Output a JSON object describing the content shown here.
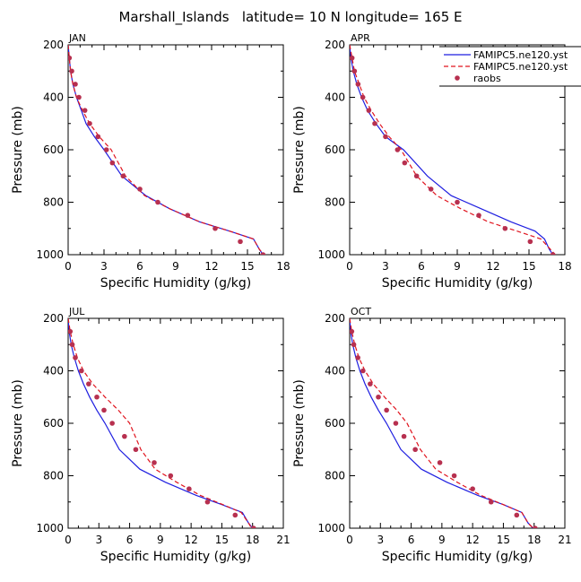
{
  "title": "Marshall_Islands   latitude= 10 N longitude= 165 E",
  "legend": [
    {
      "label": "FAMIPC5.ne120.yst",
      "style": "solid",
      "color": "#1f1fe0"
    },
    {
      "label": "FAMIPC5.ne120.yst",
      "style": "dashed",
      "color": "#e0141e"
    },
    {
      "label": "raobs",
      "style": "dot",
      "color": "#b7304f"
    }
  ],
  "chart_data": [
    {
      "type": "line",
      "title": "JAN",
      "xlabel": "Specific Humidity (g/kg)",
      "ylabel": "Pressure (mb)",
      "xlim": [
        0,
        18
      ],
      "ylim": [
        1000,
        200
      ],
      "xticks": [
        0,
        3,
        6,
        9,
        12,
        15,
        18
      ],
      "yticks": [
        200,
        400,
        600,
        800,
        1000
      ],
      "series": [
        {
          "name": "FAMIPC5.ne120.yst (solid)",
          "x": [
            0.0,
            0.1,
            0.2,
            0.4,
            0.7,
            1.1,
            1.5,
            2.2,
            3.0,
            4.5,
            6.5,
            8.5,
            11.0,
            13.5,
            15.5,
            16.0,
            16.3
          ],
          "y": [
            200,
            250,
            300,
            350,
            400,
            450,
            500,
            550,
            600,
            700,
            775,
            825,
            875,
            910,
            940,
            980,
            1000
          ]
        },
        {
          "name": "FAMIPC5.ne120.yst (dashed)",
          "x": [
            0.0,
            0.1,
            0.2,
            0.4,
            0.7,
            1.2,
            1.8,
            2.6,
            3.6,
            4.8,
            6.4,
            8.5,
            11.0,
            13.5,
            15.5,
            16.0,
            16.4
          ],
          "y": [
            200,
            250,
            300,
            350,
            400,
            450,
            500,
            550,
            600,
            700,
            775,
            825,
            875,
            910,
            940,
            980,
            1000
          ]
        },
        {
          "name": "raobs",
          "x": [
            0.1,
            0.3,
            0.6,
            0.9,
            1.4,
            1.8,
            2.5,
            3.2,
            3.7,
            4.6,
            6.0,
            7.5,
            10.0,
            12.3,
            14.4,
            16.3
          ],
          "y": [
            250,
            300,
            350,
            400,
            450,
            500,
            550,
            600,
            650,
            700,
            750,
            800,
            850,
            900,
            950,
            1000
          ]
        }
      ]
    },
    {
      "type": "line",
      "title": "APR",
      "xlabel": "Specific Humidity (g/kg)",
      "ylabel": "Pressure (mb)",
      "xlim": [
        0,
        18
      ],
      "ylim": [
        1000,
        200
      ],
      "xticks": [
        0,
        3,
        6,
        9,
        12,
        15,
        18
      ],
      "yticks": [
        200,
        400,
        600,
        800,
        1000
      ],
      "series": [
        {
          "name": "FAMIPC5.ne120.yst (solid)",
          "x": [
            0.0,
            0.1,
            0.3,
            0.6,
            1.0,
            1.5,
            2.2,
            3.0,
            4.5,
            6.5,
            8.5,
            11.0,
            13.5,
            15.5,
            16.3,
            16.7,
            17.0
          ],
          "y": [
            200,
            250,
            300,
            350,
            400,
            450,
            500,
            550,
            600,
            700,
            775,
            825,
            875,
            910,
            940,
            980,
            1000
          ]
        },
        {
          "name": "FAMIPC5.ne120.yst (dashed)",
          "x": [
            0.0,
            0.2,
            0.4,
            0.8,
            1.2,
            1.8,
            2.5,
            3.3,
            4.3,
            5.6,
            7.3,
            9.3,
            11.6,
            14.0,
            16.0,
            16.8,
            17.2
          ],
          "y": [
            200,
            250,
            300,
            350,
            400,
            450,
            500,
            550,
            600,
            700,
            775,
            825,
            875,
            910,
            940,
            980,
            1000
          ]
        },
        {
          "name": "raobs",
          "x": [
            0.2,
            0.4,
            0.7,
            1.1,
            1.6,
            2.1,
            3.0,
            4.0,
            4.6,
            5.6,
            6.8,
            9.0,
            10.8,
            13.0,
            15.1,
            17.0
          ],
          "y": [
            250,
            300,
            350,
            400,
            450,
            500,
            550,
            600,
            650,
            700,
            750,
            800,
            850,
            900,
            950,
            1000
          ]
        }
      ]
    },
    {
      "type": "line",
      "title": "JUL",
      "xlabel": "Specific Humidity (g/kg)",
      "ylabel": "Pressure (mb)",
      "xlim": [
        0,
        21
      ],
      "ylim": [
        1000,
        200
      ],
      "xticks": [
        0,
        3,
        6,
        9,
        12,
        15,
        18,
        21
      ],
      "yticks": [
        200,
        400,
        600,
        800,
        1000
      ],
      "series": [
        {
          "name": "FAMIPC5.ne120.yst (solid)",
          "x": [
            0.0,
            0.1,
            0.3,
            0.6,
            1.0,
            1.5,
            2.1,
            2.8,
            3.6,
            5.0,
            7.0,
            9.5,
            12.5,
            15.0,
            17.0,
            17.6,
            18.0
          ],
          "y": [
            200,
            250,
            300,
            350,
            400,
            450,
            500,
            550,
            600,
            700,
            775,
            825,
            875,
            910,
            940,
            980,
            1000
          ]
        },
        {
          "name": "FAMIPC5.ne120.yst (dashed)",
          "x": [
            0.0,
            0.2,
            0.5,
            0.9,
            1.5,
            2.4,
            3.6,
            4.9,
            6.0,
            7.1,
            8.5,
            10.6,
            12.9,
            15.1,
            16.9,
            17.6,
            17.9
          ],
          "y": [
            200,
            250,
            300,
            350,
            400,
            450,
            500,
            550,
            600,
            700,
            775,
            825,
            875,
            910,
            940,
            980,
            1000
          ]
        },
        {
          "name": "raobs",
          "x": [
            0.2,
            0.4,
            0.7,
            1.3,
            2.0,
            2.8,
            3.5,
            4.3,
            5.5,
            6.6,
            8.4,
            10.0,
            11.8,
            13.6,
            16.3,
            18.1
          ],
          "y": [
            250,
            300,
            350,
            400,
            450,
            500,
            550,
            600,
            650,
            700,
            750,
            800,
            850,
            900,
            950,
            1000
          ]
        }
      ]
    },
    {
      "type": "line",
      "title": "OCT",
      "xlabel": "Specific Humidity (g/kg)",
      "ylabel": "Pressure (mb)",
      "xlim": [
        0,
        21
      ],
      "ylim": [
        1000,
        200
      ],
      "xticks": [
        0,
        3,
        6,
        9,
        12,
        15,
        18,
        21
      ],
      "yticks": [
        200,
        400,
        600,
        800,
        1000
      ],
      "series": [
        {
          "name": "FAMIPC5.ne120.yst (solid)",
          "x": [
            0.0,
            0.1,
            0.3,
            0.6,
            1.0,
            1.5,
            2.1,
            2.8,
            3.6,
            5.0,
            7.0,
            9.5,
            12.5,
            15.0,
            16.8,
            17.4,
            17.9
          ],
          "y": [
            200,
            250,
            300,
            350,
            400,
            450,
            500,
            550,
            600,
            700,
            775,
            825,
            875,
            910,
            940,
            980,
            1000
          ]
        },
        {
          "name": "FAMIPC5.ne120.yst (dashed)",
          "x": [
            0.0,
            0.2,
            0.5,
            0.9,
            1.5,
            2.3,
            3.4,
            4.6,
            5.6,
            6.9,
            8.4,
            10.5,
            12.8,
            15.0,
            16.8,
            17.4,
            17.9
          ],
          "y": [
            200,
            250,
            300,
            350,
            400,
            450,
            500,
            550,
            600,
            700,
            775,
            825,
            875,
            910,
            940,
            980,
            1000
          ]
        },
        {
          "name": "raobs",
          "x": [
            0.2,
            0.4,
            0.8,
            1.3,
            2.0,
            2.8,
            3.6,
            4.5,
            5.3,
            6.4,
            8.8,
            10.2,
            12.0,
            13.8,
            16.3,
            18.1
          ],
          "y": [
            250,
            300,
            350,
            400,
            450,
            500,
            550,
            600,
            650,
            700,
            750,
            800,
            850,
            900,
            950,
            1000
          ]
        }
      ]
    }
  ]
}
